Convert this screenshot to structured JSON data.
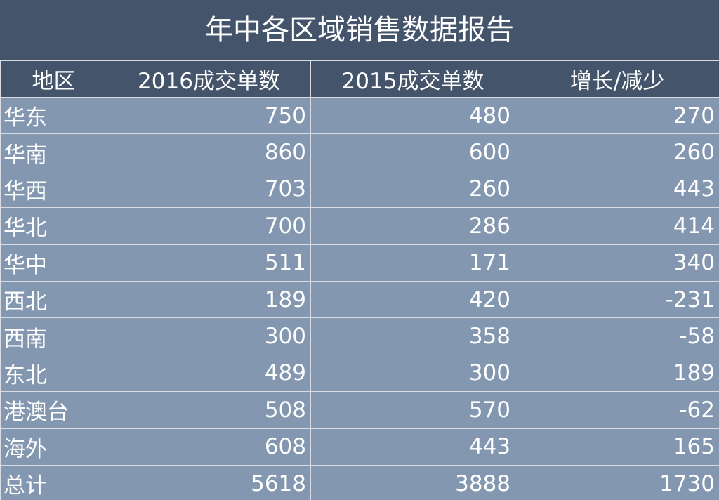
{
  "title": "年中各区域销售数据报告",
  "columns": [
    "地区",
    "2016成交单数",
    "2015成交单数",
    "增长/减少"
  ],
  "rows": [
    {
      "region": "华东",
      "y2016": "750",
      "y2015": "480",
      "change": "270"
    },
    {
      "region": "华南",
      "y2016": "860",
      "y2015": "600",
      "change": "260"
    },
    {
      "region": "华西",
      "y2016": "703",
      "y2015": "260",
      "change": "443"
    },
    {
      "region": "华北",
      "y2016": "700",
      "y2015": "286",
      "change": "414"
    },
    {
      "region": "华中",
      "y2016": "511",
      "y2015": "171",
      "change": "340"
    },
    {
      "region": "西北",
      "y2016": "189",
      "y2015": "420",
      "change": "-231"
    },
    {
      "region": "西南",
      "y2016": "300",
      "y2015": "358",
      "change": "-58"
    },
    {
      "region": "东北",
      "y2016": "489",
      "y2015": "300",
      "change": "189"
    },
    {
      "region": "港澳台",
      "y2016": "508",
      "y2015": "570",
      "change": "-62"
    },
    {
      "region": "海外",
      "y2016": "608",
      "y2015": "443",
      "change": "165"
    },
    {
      "region": "总计",
      "y2016": "5618",
      "y2015": "3888",
      "change": "1730"
    }
  ],
  "colors": {
    "header_bg": "#44546a",
    "body_bg": "#8497b0",
    "grid_line": "#d9dde3",
    "text": "#ffffff"
  }
}
